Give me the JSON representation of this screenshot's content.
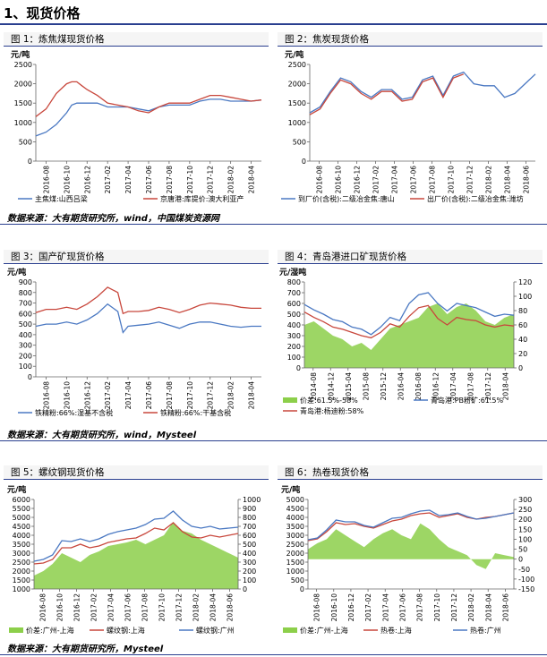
{
  "section_title": "1、现货价格",
  "source1": "数据来源：大有期货研究所，wind，中国煤炭资源网",
  "source2": "数据来源：大有期货研究所，wind，Mysteel",
  "source3": "数据来源：大有期货研究所，Mysteel",
  "colors": {
    "blue": "#4a78c2",
    "red": "#c8473c",
    "green": "#8ccf4a",
    "gray": "#888888"
  },
  "chart_data": [
    {
      "id": "c1",
      "type": "line",
      "title": "图 1：炼焦煤现货价格",
      "ylabel": "元/吨",
      "ylim": [
        0,
        2500
      ],
      "yticks": [
        0,
        500,
        1000,
        1500,
        2000,
        2500
      ],
      "xticks": [
        "2016-08",
        "2016-10",
        "2016-12",
        "2017-02",
        "2017-04",
        "2017-06",
        "2017-08",
        "2017-10",
        "2017-12",
        "2018-02",
        "2018-04"
      ],
      "xrange": [
        0,
        22
      ],
      "series": [
        {
          "name": "主焦煤:山西吕梁",
          "color": "blue",
          "x": [
            0,
            1,
            2,
            3,
            3.5,
            4,
            5,
            6,
            7,
            8,
            9,
            10,
            11,
            12,
            13,
            14,
            15,
            16,
            17,
            18,
            19,
            20,
            21,
            22
          ],
          "y": [
            650,
            750,
            950,
            1250,
            1450,
            1500,
            1500,
            1500,
            1400,
            1400,
            1400,
            1350,
            1300,
            1400,
            1450,
            1450,
            1450,
            1550,
            1600,
            1600,
            1550,
            1550,
            1550,
            1580
          ]
        },
        {
          "name": "京唐港:库提价:澳大利亚产",
          "color": "red",
          "x": [
            0,
            1,
            2,
            3,
            3.5,
            4,
            4.5,
            5,
            6,
            7,
            8,
            9,
            10,
            11,
            12,
            13,
            14,
            15,
            16,
            17,
            18,
            19,
            20,
            21,
            22
          ],
          "y": [
            1150,
            1350,
            1750,
            2000,
            2050,
            2050,
            1950,
            1850,
            1700,
            1500,
            1450,
            1400,
            1300,
            1250,
            1400,
            1500,
            1500,
            1500,
            1600,
            1700,
            1700,
            1650,
            1600,
            1550,
            1580
          ]
        }
      ]
    },
    {
      "id": "c2",
      "type": "line",
      "title": "图 2：焦炭现货价格",
      "ylabel": "元/吨",
      "ylim": [
        0,
        2500
      ],
      "yticks": [
        0,
        500,
        1000,
        1500,
        2000,
        2500
      ],
      "xticks": [
        "2016-08",
        "2016-10",
        "2016-12",
        "2017-02",
        "2017-04",
        "2017-06",
        "2017-08",
        "2017-10",
        "2017-12",
        "2018-02",
        "2018-04",
        "2018-06"
      ],
      "xrange": [
        0,
        22
      ],
      "series": [
        {
          "name": "到厂价(含税):二级冶金焦:唐山",
          "color": "blue",
          "x": [
            0,
            1,
            2,
            3,
            4,
            5,
            6,
            7,
            8,
            9,
            10,
            11,
            12,
            13,
            14,
            15,
            16,
            17,
            18,
            19,
            20,
            21,
            22
          ],
          "y": [
            1250,
            1400,
            1800,
            2150,
            2050,
            1800,
            1650,
            1850,
            1850,
            1600,
            1650,
            2100,
            2200,
            1700,
            2200,
            2300,
            2000,
            1950,
            1950,
            1650,
            1750,
            2000,
            2250
          ]
        },
        {
          "name": "出厂价(含税):二级冶金焦:潍坊",
          "color": "red",
          "x": [
            0,
            1,
            2,
            3,
            4,
            5,
            6,
            7,
            8,
            9,
            10,
            11,
            12,
            13,
            14,
            15
          ],
          "y": [
            1200,
            1350,
            1750,
            2100,
            2000,
            1750,
            1600,
            1800,
            1800,
            1550,
            1600,
            2050,
            2150,
            1650,
            2150,
            2250
          ]
        }
      ]
    },
    {
      "id": "c3",
      "type": "line",
      "title": "图 3：国产矿现货价格",
      "ylabel": "元/吨",
      "ylim": [
        0,
        900
      ],
      "yticks": [
        0,
        100,
        200,
        300,
        400,
        500,
        600,
        700,
        800,
        900
      ],
      "xticks": [
        "2016-08",
        "2016-10",
        "2016-12",
        "2017-02",
        "2017-04",
        "2017-06",
        "2017-08",
        "2017-10",
        "2017-12",
        "2018-02",
        "2018-04"
      ],
      "xrange": [
        0,
        22
      ],
      "series": [
        {
          "name": "铁精粉:66%:湿基不含税",
          "color": "blue",
          "x": [
            0,
            1,
            2,
            3,
            4,
            5,
            6,
            7,
            8,
            8.5,
            9,
            10,
            11,
            12,
            13,
            14,
            15,
            16,
            17,
            18,
            19,
            20,
            21,
            22
          ],
          "y": [
            480,
            500,
            500,
            520,
            500,
            540,
            600,
            690,
            620,
            420,
            480,
            490,
            500,
            520,
            490,
            460,
            500,
            520,
            520,
            500,
            480,
            470,
            480,
            480
          ]
        },
        {
          "name": "铁精粉:66%:干基含税",
          "color": "red",
          "x": [
            0,
            1,
            2,
            3,
            4,
            5,
            6,
            7,
            8,
            8.5,
            9,
            10,
            11,
            12,
            13,
            14,
            15,
            16,
            17,
            18,
            19,
            20,
            21,
            22
          ],
          "y": [
            610,
            640,
            640,
            660,
            640,
            690,
            760,
            850,
            800,
            600,
            620,
            620,
            630,
            660,
            640,
            610,
            640,
            680,
            700,
            690,
            680,
            660,
            650,
            650
          ]
        }
      ]
    },
    {
      "id": "c4",
      "type": "line",
      "title": "图 4：青岛港进口矿现货价格",
      "ylabel": "元/湿吨",
      "ylim": [
        0,
        800
      ],
      "yticks": [
        0,
        100,
        200,
        300,
        400,
        500,
        600,
        700,
        800
      ],
      "y2lim": [
        0,
        120
      ],
      "y2ticks": [
        0,
        20,
        40,
        60,
        80,
        100,
        120
      ],
      "xticks": [
        "2014-08",
        "2014-12",
        "2015-04",
        "2015-08",
        "2015-12",
        "2016-04",
        "2016-08",
        "2016-12",
        "2017-04",
        "2017-08",
        "2017-12",
        "2018-04"
      ],
      "xrange": [
        0,
        22
      ],
      "series": [
        {
          "name": "价差:61.5%-58%",
          "color": "green",
          "type": "area",
          "axis": "y2",
          "x": [
            0,
            1,
            2,
            3,
            4,
            5,
            6,
            7,
            8,
            9,
            10,
            11,
            12,
            13,
            14,
            15,
            16,
            17,
            18,
            19,
            20,
            21,
            22
          ],
          "y": [
            60,
            65,
            55,
            45,
            40,
            30,
            35,
            25,
            40,
            55,
            60,
            65,
            70,
            85,
            90,
            75,
            85,
            90,
            80,
            65,
            60,
            70,
            75
          ]
        },
        {
          "name": "青岛港:PB粉矿:61.5%",
          "color": "blue",
          "x": [
            0,
            1,
            2,
            3,
            4,
            5,
            6,
            7,
            8,
            9,
            10,
            11,
            12,
            13,
            14,
            15,
            16,
            17,
            18,
            19,
            20,
            21,
            22
          ],
          "y": [
            590,
            540,
            500,
            450,
            430,
            380,
            360,
            310,
            380,
            470,
            440,
            600,
            680,
            700,
            600,
            530,
            600,
            580,
            560,
            520,
            480,
            500,
            490
          ]
        },
        {
          "name": "青岛港:杨迪粉:58%",
          "color": "red",
          "x": [
            0,
            1,
            2,
            3,
            4,
            5,
            6,
            7,
            8,
            9,
            10,
            11,
            12,
            13,
            14,
            15,
            16,
            17,
            18,
            19,
            20,
            21,
            22
          ],
          "y": [
            520,
            470,
            430,
            380,
            360,
            330,
            300,
            280,
            330,
            410,
            380,
            480,
            560,
            580,
            460,
            400,
            470,
            450,
            440,
            400,
            380,
            400,
            390
          ]
        }
      ]
    },
    {
      "id": "c5",
      "type": "line",
      "title": "图 5：螺纹钢现货价格",
      "ylabel": "元/吨",
      "ylim": [
        1000,
        6000
      ],
      "yticks": [
        1000,
        1500,
        2000,
        2500,
        3000,
        3500,
        4000,
        4500,
        5000,
        5500,
        6000
      ],
      "y2lim": [
        0,
        1000
      ],
      "y2ticks": [
        0,
        100,
        200,
        300,
        400,
        500,
        600,
        700,
        800,
        900,
        1000
      ],
      "xticks": [
        "2016-08",
        "2016-10",
        "2016-12",
        "2017-02",
        "2017-04",
        "2017-06",
        "2017-08",
        "2017-10",
        "2017-12",
        "2018-02",
        "2018-04",
        "2018-06"
      ],
      "xrange": [
        0,
        22
      ],
      "series": [
        {
          "name": "价差:广州-上海",
          "color": "green",
          "type": "area",
          "axis": "y2",
          "x": [
            0,
            1,
            2,
            3,
            4,
            5,
            6,
            7,
            8,
            9,
            10,
            11,
            12,
            13,
            14,
            15,
            16,
            17,
            18,
            19,
            20,
            21,
            22
          ],
          "y": [
            150,
            200,
            280,
            400,
            350,
            300,
            380,
            420,
            480,
            500,
            520,
            550,
            500,
            550,
            600,
            750,
            650,
            620,
            550,
            500,
            450,
            400,
            350
          ]
        },
        {
          "name": "螺纹钢:上海",
          "color": "red",
          "x": [
            0,
            1,
            2,
            3,
            4,
            5,
            6,
            7,
            8,
            9,
            10,
            11,
            12,
            13,
            14,
            15,
            16,
            17,
            18,
            19,
            20,
            21,
            22
          ],
          "y": [
            2400,
            2450,
            2650,
            3300,
            3300,
            3500,
            3300,
            3400,
            3600,
            3700,
            3800,
            3850,
            4100,
            4400,
            4300,
            4700,
            4200,
            3900,
            3850,
            4000,
            3900,
            4000,
            4100
          ]
        },
        {
          "name": "螺纹钢:广州",
          "color": "blue",
          "x": [
            0,
            1,
            2,
            3,
            4,
            5,
            6,
            7,
            8,
            9,
            10,
            11,
            12,
            13,
            14,
            15,
            16,
            17,
            18,
            19,
            20,
            21,
            22
          ],
          "y": [
            2550,
            2650,
            2900,
            3700,
            3650,
            3800,
            3650,
            3800,
            4050,
            4200,
            4300,
            4400,
            4600,
            4900,
            4950,
            5350,
            4850,
            4500,
            4400,
            4500,
            4350,
            4400,
            4450
          ]
        }
      ]
    },
    {
      "id": "c6",
      "type": "line",
      "title": "图 6：热卷现货价格",
      "ylabel": "元/吨",
      "ylim": [
        0,
        5000
      ],
      "yticks": [
        0,
        500,
        1000,
        1500,
        2000,
        2500,
        3000,
        3500,
        4000,
        4500,
        5000
      ],
      "y2lim": [
        -150,
        300
      ],
      "y2ticks": [
        -150,
        -100,
        -50,
        0,
        50,
        100,
        150,
        200,
        250,
        300
      ],
      "xticks": [
        "2016-08",
        "2016-10",
        "2016-12",
        "2017-02",
        "2017-04",
        "2017-06",
        "2017-08",
        "2017-10",
        "2017-12",
        "2018-02",
        "2018-04",
        "2018-06"
      ],
      "xrange": [
        0,
        22
      ],
      "series": [
        {
          "name": "价差:广州-上海",
          "color": "green",
          "type": "area",
          "axis": "y2",
          "x": [
            0,
            1,
            2,
            3,
            4,
            5,
            6,
            7,
            8,
            9,
            10,
            11,
            12,
            13,
            14,
            15,
            16,
            17,
            18,
            19,
            20,
            21,
            22
          ],
          "y": [
            50,
            80,
            100,
            150,
            120,
            90,
            60,
            100,
            130,
            150,
            120,
            100,
            180,
            150,
            100,
            60,
            40,
            20,
            -30,
            -50,
            30,
            20,
            10
          ]
        },
        {
          "name": "热卷:上海",
          "color": "red",
          "x": [
            0,
            1,
            2,
            3,
            4,
            5,
            6,
            7,
            8,
            9,
            10,
            11,
            12,
            13,
            14,
            15,
            16,
            17,
            18,
            19,
            20,
            21,
            22
          ],
          "y": [
            2700,
            2800,
            3200,
            3700,
            3600,
            3650,
            3500,
            3400,
            3600,
            3800,
            3900,
            4100,
            4200,
            4250,
            4000,
            4100,
            4200,
            4000,
            3900,
            4000,
            4050,
            4150,
            4250
          ]
        },
        {
          "name": "热卷:广州",
          "color": "blue",
          "x": [
            0,
            1,
            2,
            3,
            4,
            5,
            6,
            7,
            8,
            9,
            10,
            11,
            12,
            13,
            14,
            15,
            16,
            17,
            18,
            19,
            20,
            21,
            22
          ],
          "y": [
            2750,
            2850,
            3300,
            3850,
            3750,
            3750,
            3550,
            3450,
            3700,
            3950,
            4000,
            4200,
            4350,
            4400,
            4100,
            4150,
            4250,
            4050,
            3900,
            3950,
            4050,
            4150,
            4250
          ]
        }
      ]
    }
  ]
}
